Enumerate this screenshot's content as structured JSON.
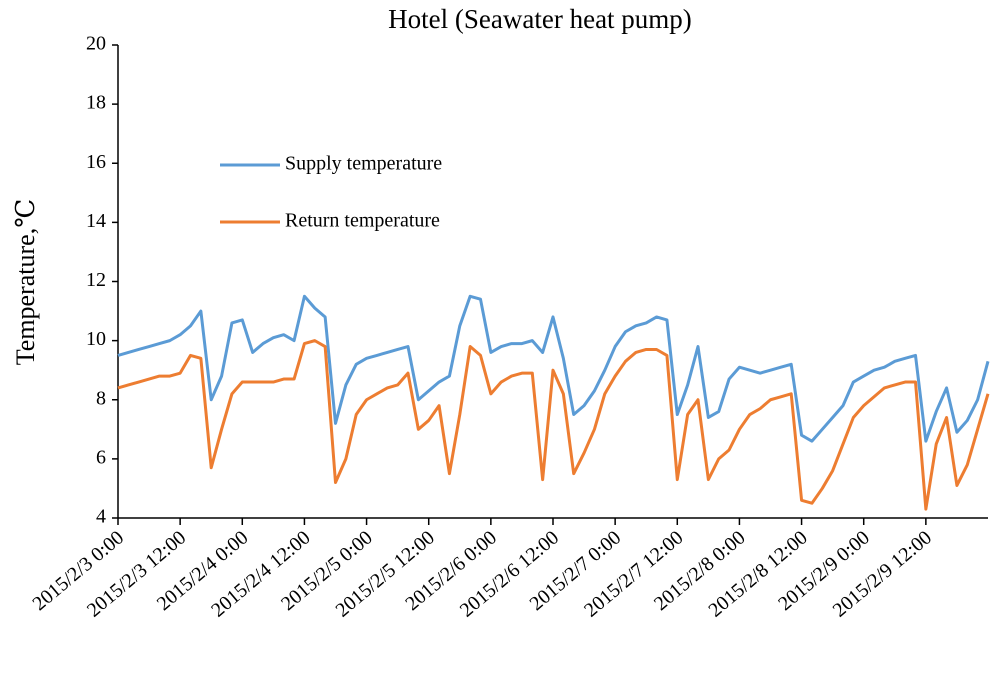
{
  "chart_data": {
    "type": "line",
    "title": "Hotel (Seawater heat pump)",
    "y_label": "Temperature,℃",
    "x": [
      "2015/2/3 0:00",
      "2015/2/3 2:00",
      "2015/2/3 4:00",
      "2015/2/3 6:00",
      "2015/2/3 8:00",
      "2015/2/3 10:00",
      "2015/2/3 12:00",
      "2015/2/3 14:00",
      "2015/2/3 16:00",
      "2015/2/3 18:00",
      "2015/2/3 20:00",
      "2015/2/3 22:00",
      "2015/2/4 0:00",
      "2015/2/4 2:00",
      "2015/2/4 4:00",
      "2015/2/4 6:00",
      "2015/2/4 8:00",
      "2015/2/4 10:00",
      "2015/2/4 12:00",
      "2015/2/4 14:00",
      "2015/2/4 16:00",
      "2015/2/4 18:00",
      "2015/2/4 20:00",
      "2015/2/4 22:00",
      "2015/2/5 0:00",
      "2015/2/5 2:00",
      "2015/2/5 4:00",
      "2015/2/5 6:00",
      "2015/2/5 8:00",
      "2015/2/5 10:00",
      "2015/2/5 12:00",
      "2015/2/5 14:00",
      "2015/2/5 16:00",
      "2015/2/5 18:00",
      "2015/2/5 20:00",
      "2015/2/5 22:00",
      "2015/2/6 0:00",
      "2015/2/6 2:00",
      "2015/2/6 4:00",
      "2015/2/6 6:00",
      "2015/2/6 8:00",
      "2015/2/6 10:00",
      "2015/2/6 12:00",
      "2015/2/6 14:00",
      "2015/2/6 16:00",
      "2015/2/6 18:00",
      "2015/2/6 20:00",
      "2015/2/6 22:00",
      "2015/2/7 0:00",
      "2015/2/7 2:00",
      "2015/2/7 4:00",
      "2015/2/7 6:00",
      "2015/2/7 8:00",
      "2015/2/7 10:00",
      "2015/2/7 12:00",
      "2015/2/7 14:00",
      "2015/2/7 16:00",
      "2015/2/7 18:00",
      "2015/2/7 20:00",
      "2015/2/7 22:00",
      "2015/2/8 0:00",
      "2015/2/8 2:00",
      "2015/2/8 4:00",
      "2015/2/8 6:00",
      "2015/2/8 8:00",
      "2015/2/8 10:00",
      "2015/2/8 12:00",
      "2015/2/8 14:00",
      "2015/2/8 16:00",
      "2015/2/8 18:00",
      "2015/2/8 20:00",
      "2015/2/8 22:00",
      "2015/2/9 0:00",
      "2015/2/9 2:00",
      "2015/2/9 4:00",
      "2015/2/9 6:00",
      "2015/2/9 8:00",
      "2015/2/9 10:00",
      "2015/2/9 12:00",
      "2015/2/9 14:00",
      "2015/2/9 16:00",
      "2015/2/9 18:00",
      "2015/2/9 20:00",
      "2015/2/9 22:00",
      "2015/2/10 0:00"
    ],
    "series": [
      {
        "name": "Supply temperature",
        "color": "#5b9bd5",
        "values": [
          9.5,
          9.6,
          9.7,
          9.8,
          9.9,
          10.0,
          10.2,
          10.5,
          11.0,
          8.0,
          8.8,
          10.6,
          10.7,
          9.6,
          9.9,
          10.1,
          10.2,
          10.0,
          11.5,
          11.1,
          10.8,
          7.2,
          8.5,
          9.2,
          9.4,
          9.5,
          9.6,
          9.7,
          9.8,
          8.0,
          8.3,
          8.6,
          8.8,
          10.5,
          11.5,
          11.4,
          9.6,
          9.8,
          9.9,
          9.9,
          10.0,
          9.6,
          10.8,
          9.4,
          7.5,
          7.8,
          8.3,
          9.0,
          9.8,
          10.3,
          10.5,
          10.6,
          10.8,
          10.7,
          7.5,
          8.5,
          9.8,
          7.4,
          7.6,
          8.7,
          9.1,
          9.0,
          8.9,
          9.0,
          9.1,
          9.2,
          6.8,
          6.6,
          7.0,
          7.4,
          7.8,
          8.6,
          8.8,
          9.0,
          9.1,
          9.3,
          9.4,
          9.5,
          6.6,
          7.6,
          8.4,
          6.9,
          7.3,
          8.0,
          9.3
        ]
      },
      {
        "name": "Return temperature",
        "color": "#ed7d31",
        "values": [
          8.4,
          8.5,
          8.6,
          8.7,
          8.8,
          8.8,
          8.9,
          9.5,
          9.4,
          5.7,
          7.0,
          8.2,
          8.6,
          8.6,
          8.6,
          8.6,
          8.7,
          8.7,
          9.9,
          10.0,
          9.8,
          5.2,
          6.0,
          7.5,
          8.0,
          8.2,
          8.4,
          8.5,
          8.9,
          7.0,
          7.3,
          7.8,
          5.5,
          7.5,
          9.8,
          9.5,
          8.2,
          8.6,
          8.8,
          8.9,
          8.9,
          5.3,
          9.0,
          8.2,
          5.5,
          6.2,
          7.0,
          8.2,
          8.8,
          9.3,
          9.6,
          9.7,
          9.7,
          9.5,
          5.3,
          7.5,
          8.0,
          5.3,
          6.0,
          6.3,
          7.0,
          7.5,
          7.7,
          8.0,
          8.1,
          8.2,
          4.6,
          4.5,
          5.0,
          5.6,
          6.5,
          7.4,
          7.8,
          8.1,
          8.4,
          8.5,
          8.6,
          8.6,
          4.3,
          6.5,
          7.4,
          5.1,
          5.8,
          7.0,
          8.2
        ]
      }
    ],
    "xlim": [
      "2015/2/3 0:00",
      "2015/2/10 0:00"
    ],
    "xticks": [
      "2015/2/3 0:00",
      "2015/2/3 12:00",
      "2015/2/4 0:00",
      "2015/2/4 12:00",
      "2015/2/5 0:00",
      "2015/2/5 12:00",
      "2015/2/6 0:00",
      "2015/2/6 12:00",
      "2015/2/7 0:00",
      "2015/2/7 12:00",
      "2015/2/8 0:00",
      "2015/2/8 12:00",
      "2015/2/9 0:00",
      "2015/2/9 12:00"
    ],
    "ylim": [
      4,
      20
    ],
    "yticks": [
      4,
      6,
      8,
      10,
      12,
      14,
      16,
      18,
      20
    ],
    "grid": false,
    "legend": "upper left"
  }
}
